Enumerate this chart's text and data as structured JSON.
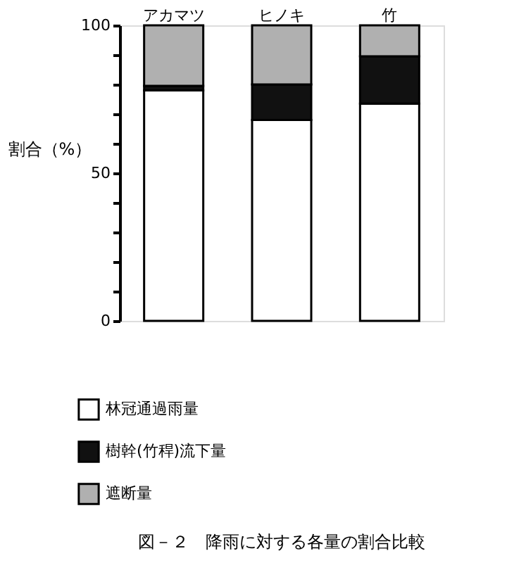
{
  "chart_data": {
    "type": "bar",
    "stacked": true,
    "title": "図－２　降雨に対する各量の割合比較",
    "ylabel": "割合（%）",
    "categories": [
      "アカマツ",
      "ヒノキ",
      "竹"
    ],
    "series": [
      {
        "name": "林冠通過雨量",
        "color": "#ffffff",
        "values": [
          78,
          68,
          73.5
        ]
      },
      {
        "name": "樹幹(竹稈)流下量",
        "color": "#111111",
        "values": [
          1.5,
          12,
          16
        ]
      },
      {
        "name": "遮断量",
        "color": "#b0b0b0",
        "values": [
          20.5,
          20,
          10.5
        ]
      }
    ],
    "ylim": [
      0,
      100
    ],
    "yticks": [
      0,
      {
        "value": 10,
        "label": null
      },
      {
        "value": 20,
        "label": null
      },
      {
        "value": 30,
        "label": null
      },
      {
        "value": 40,
        "label": null
      },
      50,
      {
        "value": 60,
        "label": null
      },
      {
        "value": 70,
        "label": null
      },
      {
        "value": 80,
        "label": null
      },
      {
        "value": 90,
        "label": null
      },
      100
    ],
    "grid": false,
    "legend": "bottom left"
  }
}
